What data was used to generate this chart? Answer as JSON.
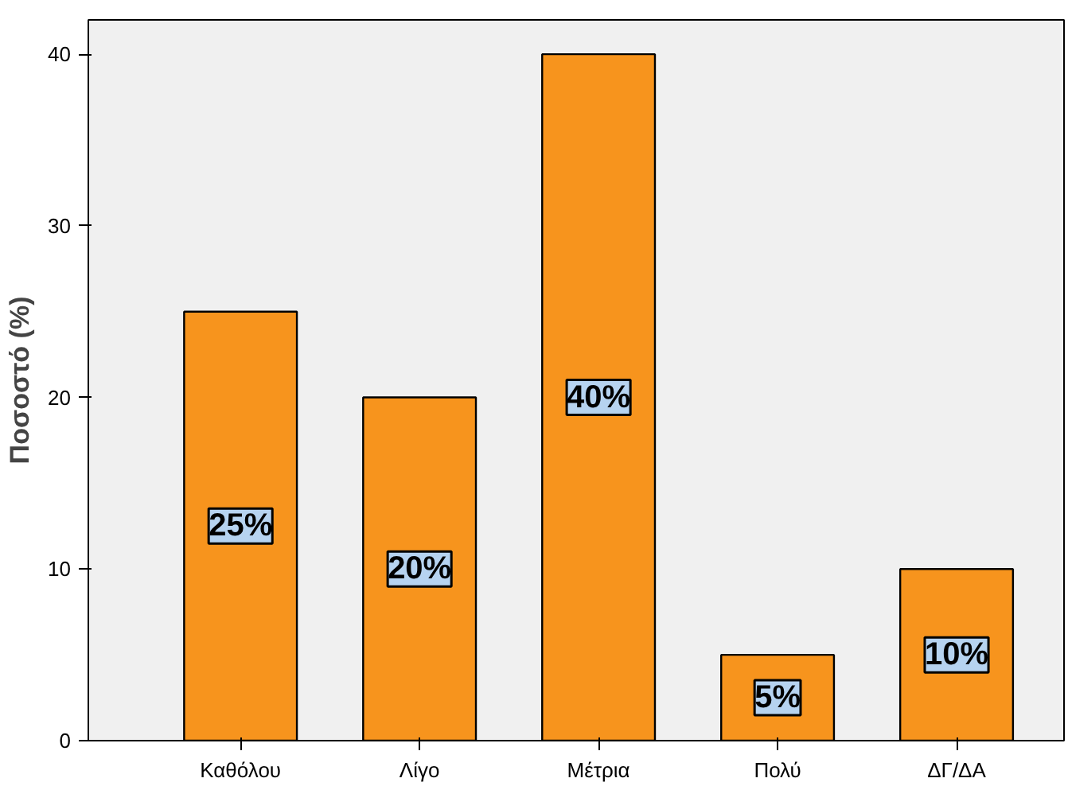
{
  "chart_data": {
    "type": "bar",
    "ylabel": "Ποσοστό (%)",
    "categories": [
      "Καθόλου",
      "Λίγο",
      "Μέτρια",
      "Πολύ",
      "ΔΓ/ΔΑ"
    ],
    "values": [
      25,
      20,
      40,
      5,
      10
    ],
    "color": "#f7941d",
    "value_labels": [
      "25%",
      "20%",
      "40%",
      "5%",
      "10%"
    ],
    "ylim": [
      0,
      42
    ],
    "yticks": [
      0,
      10,
      20,
      30,
      40
    ],
    "grid": false
  }
}
